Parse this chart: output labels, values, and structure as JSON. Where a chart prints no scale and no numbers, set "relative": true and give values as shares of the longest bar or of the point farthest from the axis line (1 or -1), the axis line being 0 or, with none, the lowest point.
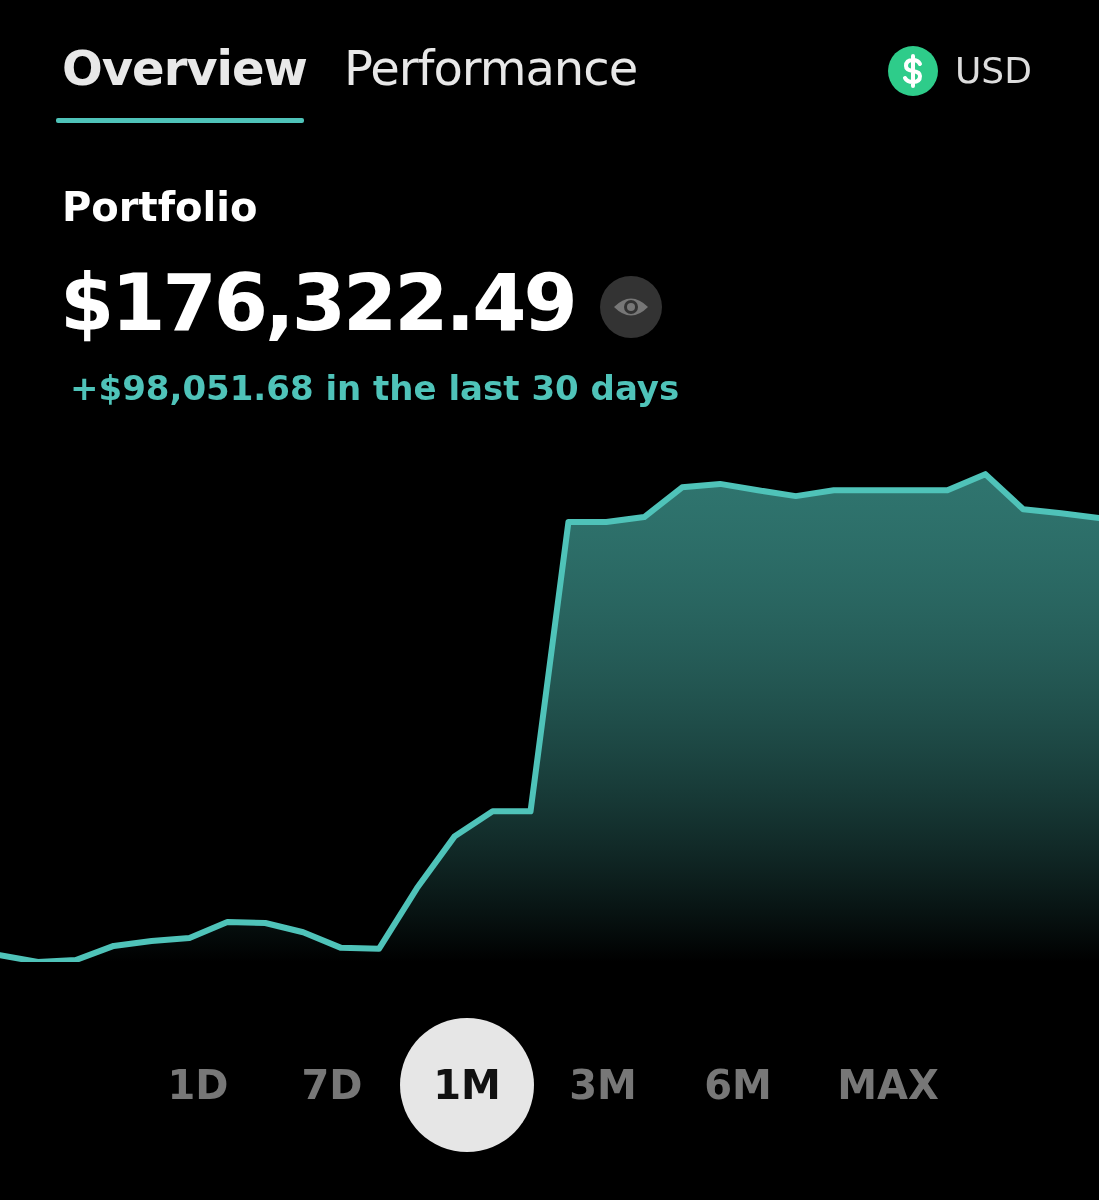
{
  "chart_data": {
    "type": "area",
    "relative": true,
    "title": "$176,322.49",
    "subtitle": "+$98,051.68 in the last 30 days",
    "annotations": [
      "Overview",
      "Performance",
      "USD",
      "Portfolio",
      "1D",
      "7D",
      "1M",
      "3M",
      "6M",
      "MAX"
    ],
    "categories": [
      null,
      null,
      null,
      null,
      null,
      null,
      null,
      null,
      null,
      null,
      null,
      null,
      null,
      null,
      null,
      null,
      null,
      null,
      null,
      null,
      null,
      null,
      null,
      null,
      null,
      null,
      null,
      null,
      null,
      null
    ],
    "series": [
      {
        "color": "#4fc3b9",
        "values": [
          0.014,
          0,
          0.004,
          0.033,
          0.043,
          0.049,
          0.082,
          0.08,
          0.061,
          0.029,
          0.027,
          0.151,
          0.258,
          0.309,
          0.309,
          0.902,
          0.902,
          0.912,
          0.973,
          0.98,
          0.967,
          0.955,
          0.967,
          0.967,
          0.967,
          0.967,
          1,
          0.928,
          0.92,
          0.91
        ]
      }
    ]
  }
}
